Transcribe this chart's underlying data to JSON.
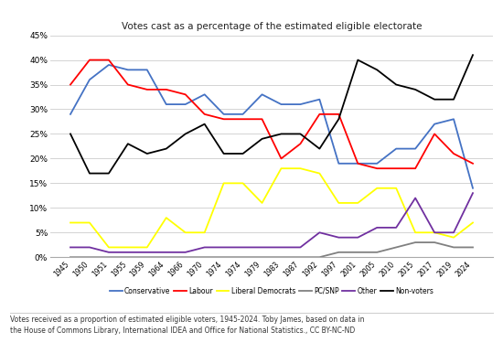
{
  "title": "Votes cast as a percentage of the estimated eligible electorate",
  "caption": "Votes received as a proportion of estimated eligible voters, 1945-2024. Toby James, based on data in\nthe House of Commons Library, International IDEA and Office for National Statistics., CC BY-NC-ND",
  "years": [
    1945,
    1950,
    1951,
    1955,
    1959,
    1964,
    1966,
    1970,
    1974,
    1974,
    1979,
    1983,
    1987,
    1992,
    1997,
    2001,
    2005,
    2010,
    2015,
    2017,
    2019,
    2024
  ],
  "year_labels": [
    "1945",
    "1950",
    "1951",
    "1955",
    "1959",
    "1964",
    "1966",
    "1970",
    "1974",
    "1974",
    "1979",
    "1983",
    "1987",
    "1992",
    "1997",
    "2001",
    "2005",
    "2010",
    "2015",
    "2017",
    "2019",
    "2024"
  ],
  "conservative": [
    29,
    36,
    39,
    38,
    38,
    31,
    31,
    33,
    29,
    29,
    33,
    31,
    31,
    32,
    19,
    19,
    19,
    22,
    22,
    27,
    28,
    14
  ],
  "labour": [
    35,
    40,
    40,
    35,
    34,
    34,
    33,
    29,
    28,
    28,
    28,
    20,
    23,
    29,
    29,
    19,
    18,
    18,
    18,
    25,
    21,
    19
  ],
  "libdem": [
    7,
    7,
    2,
    2,
    2,
    8,
    5,
    5,
    15,
    15,
    11,
    18,
    18,
    17,
    11,
    11,
    14,
    14,
    5,
    5,
    4,
    7
  ],
  "pcsnp": [
    0,
    0,
    0,
    0,
    0,
    0,
    0,
    0,
    0,
    0,
    0,
    0,
    0,
    0,
    1,
    1,
    1,
    2,
    3,
    3,
    2,
    2
  ],
  "other": [
    2,
    2,
    1,
    1,
    1,
    1,
    1,
    2,
    2,
    2,
    2,
    2,
    2,
    5,
    4,
    4,
    6,
    6,
    12,
    5,
    5,
    13
  ],
  "nonvoters": [
    25,
    17,
    17,
    23,
    21,
    22,
    25,
    27,
    21,
    21,
    24,
    25,
    25,
    22,
    28,
    40,
    38,
    35,
    34,
    32,
    32,
    41
  ],
  "colors": {
    "conservative": "#4472C4",
    "labour": "#FF0000",
    "libdem": "#FFFF00",
    "pcsnp": "#808080",
    "other": "#7030A0",
    "nonvoters": "#000000"
  },
  "ylim": [
    0,
    45
  ],
  "yticks": [
    0,
    5,
    10,
    15,
    20,
    25,
    30,
    35,
    40,
    45
  ],
  "ytick_labels": [
    "0%",
    "5%",
    "10%",
    "15%",
    "20%",
    "25%",
    "30%",
    "35%",
    "40%",
    "45%"
  ],
  "legend_labels": [
    "Conservative",
    "Labour",
    "Liberal Democrats",
    "PC/SNP",
    "Other",
    "Non-voters"
  ],
  "background_color": "#ffffff",
  "grid_color": "#cccccc"
}
